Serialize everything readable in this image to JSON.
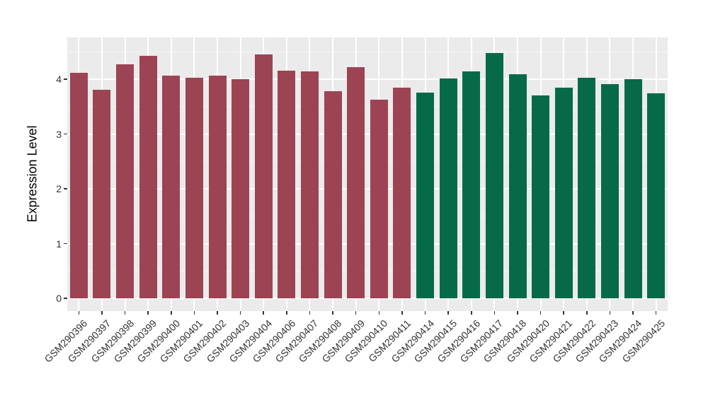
{
  "chart_data": {
    "type": "bar",
    "title": "",
    "xlabel": "",
    "ylabel": "Expression Level",
    "legend_position": "none",
    "grid": "major white + minor faint, horizontal and vertical-at-category, on grey panel",
    "panel_bg": "#EBEBEB",
    "yticks": [
      0,
      1,
      2,
      3,
      4
    ],
    "minor_yticks": [
      0.5,
      1.5,
      2.5,
      3.5,
      4.5
    ],
    "ylim": [
      -0.23,
      4.76
    ],
    "categories": [
      "GSM290396",
      "GSM290397",
      "GSM290398",
      "GSM290399",
      "GSM290400",
      "GSM290401",
      "GSM290402",
      "GSM290403",
      "GSM290404",
      "GSM290406",
      "GSM290407",
      "GSM290408",
      "GSM290409",
      "GSM290410",
      "GSM290411",
      "GSM290414",
      "GSM290415",
      "GSM290416",
      "GSM290417",
      "GSM290418",
      "GSM290420",
      "GSM290421",
      "GSM290422",
      "GSM290423",
      "GSM290424",
      "GSM290425"
    ],
    "values": [
      4.12,
      3.81,
      4.27,
      4.43,
      4.07,
      4.03,
      4.06,
      4.0,
      4.45,
      4.15,
      4.14,
      3.78,
      4.22,
      3.62,
      3.84,
      3.76,
      4.01,
      4.14,
      4.48,
      4.09,
      3.7,
      3.84,
      4.02,
      3.91,
      4.0,
      3.74
    ],
    "groups": [
      "group1",
      "group1",
      "group1",
      "group1",
      "group1",
      "group1",
      "group1",
      "group1",
      "group1",
      "group1",
      "group1",
      "group1",
      "group1",
      "group1",
      "group1",
      "group2",
      "group2",
      "group2",
      "group2",
      "group2",
      "group2",
      "group2",
      "group2",
      "group2",
      "group2",
      "group2"
    ],
    "group_colors": {
      "group1": "#9C4453",
      "group2": "#066A49"
    }
  }
}
